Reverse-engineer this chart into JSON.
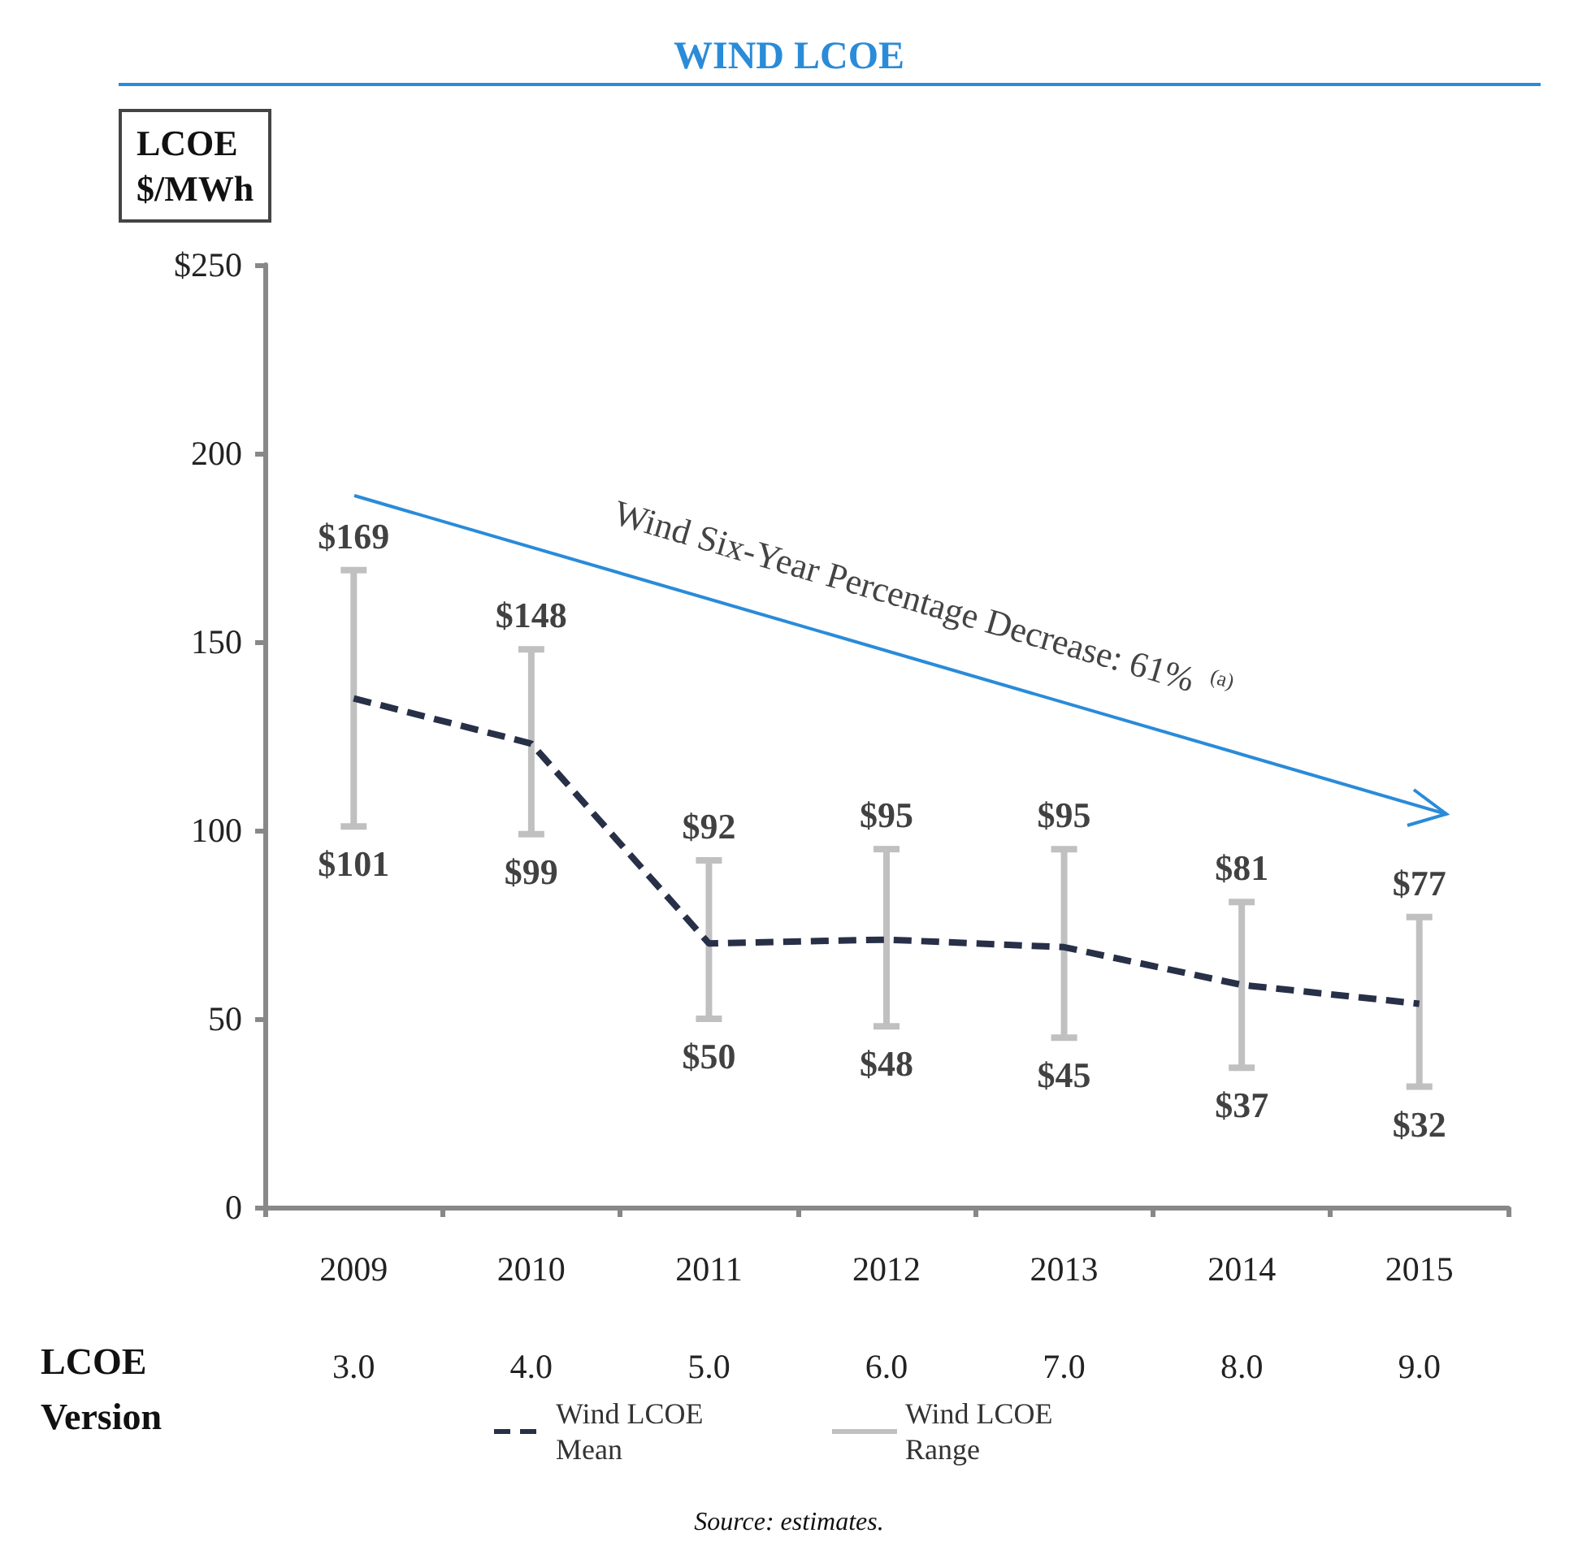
{
  "chart_data": {
    "type": "line",
    "title": "WIND LCOE",
    "ylabel": "LCOE\n$/MWh",
    "xlabel": "LCOE\nVersion",
    "categories": [
      "2009\n3.0",
      "2010\n4.0",
      "2011\n5.0",
      "2012\n6.0",
      "2013\n7.0",
      "2014\n8.0",
      "2015\n9.0"
    ],
    "series": [
      {
        "name": "Wind LCOE Mean",
        "color": "#283048",
        "line_style": "dashed",
        "marker": "none",
        "values": [
          135,
          123,
          70,
          71,
          69,
          59,
          54
        ]
      },
      {
        "name": "Wind LCOE Range",
        "type": "bar",
        "color": "#c0c0c0",
        "base": [
          101,
          99,
          50,
          48,
          45,
          37,
          32
        ],
        "values": [
          68,
          49,
          42,
          47,
          50,
          44,
          45
        ]
      }
    ],
    "ylim": [
      0,
      250
    ],
    "yticks": [
      0,
      50,
      100,
      150,
      200,
      {
        "value": 250,
        "label": "$250"
      }
    ],
    "grid": false,
    "legend": "bottom",
    "annotations": [
      "Wind Six-Year Percentage Decrease: 61% $^{(a)}$",
      {
        "text": "$169",
        "x": "2009\n3.0",
        "y": 169
      },
      {
        "text": "$101",
        "x": "2009\n3.0",
        "y": 101
      },
      {
        "text": "$148",
        "x": "2010\n4.0",
        "y": 148
      },
      {
        "text": "$99",
        "x": "2010\n4.0",
        "y": 99
      },
      {
        "text": "$92",
        "x": "2011\n5.0",
        "y": 92
      },
      {
        "text": "$50",
        "x": "2011\n5.0",
        "y": 50
      },
      {
        "text": "$95",
        "x": "2012\n6.0",
        "y": 95
      },
      {
        "text": "$48",
        "x": "2012\n6.0",
        "y": 48
      },
      {
        "text": "$95",
        "x": "2013\n7.0",
        "y": 95
      },
      {
        "text": "$45",
        "x": "2013\n7.0",
        "y": 45
      },
      {
        "text": "$81",
        "x": "2014\n8.0",
        "y": 81
      },
      {
        "text": "$37",
        "x": "2014\n8.0",
        "y": 37
      },
      {
        "text": "$77",
        "x": "2015\n9.0",
        "y": 77
      },
      {
        "text": "$32",
        "x": "2015\n9.0",
        "y": 32
      },
      "Source: estimates."
    ]
  }
}
